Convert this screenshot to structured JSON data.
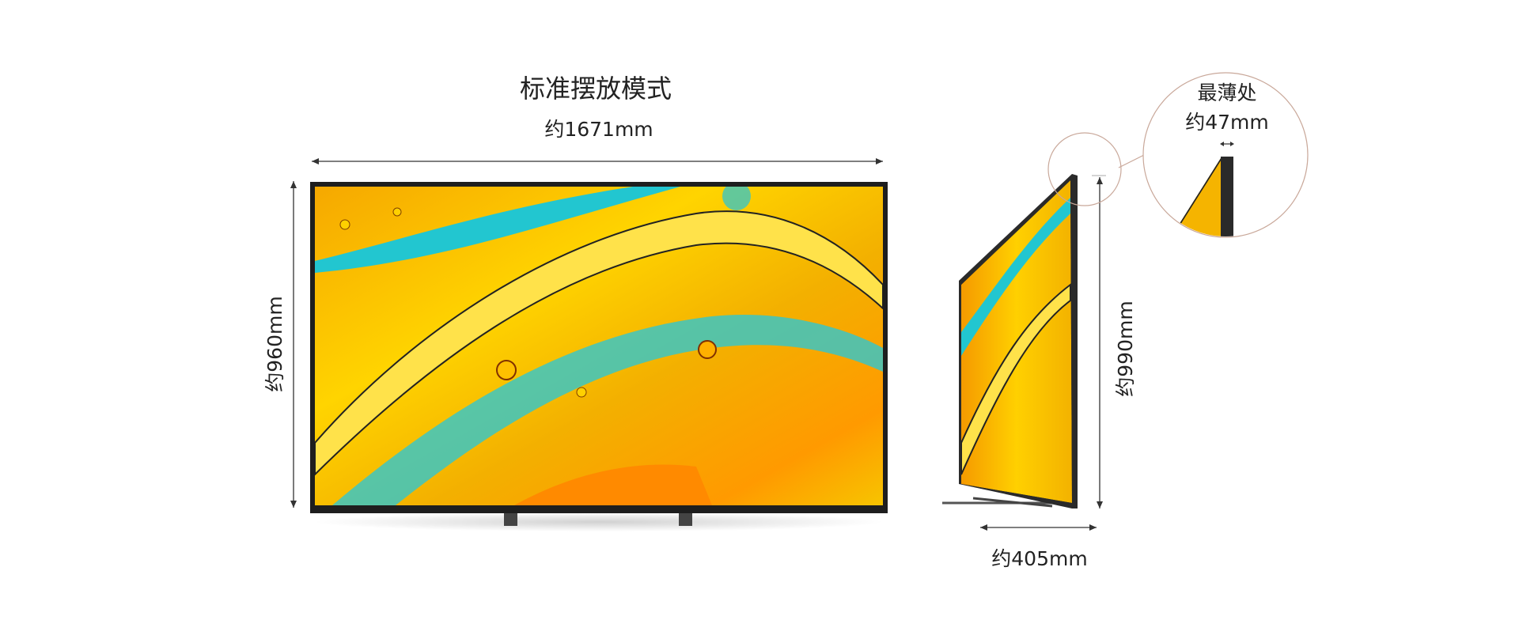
{
  "header": {
    "title": "标准摆放模式"
  },
  "front": {
    "width": "约1671mm",
    "height": "约960mm"
  },
  "side": {
    "height": "约990mm",
    "depth": "约405mm"
  },
  "detail": {
    "title": "最薄处",
    "thickness": "约47mm"
  }
}
